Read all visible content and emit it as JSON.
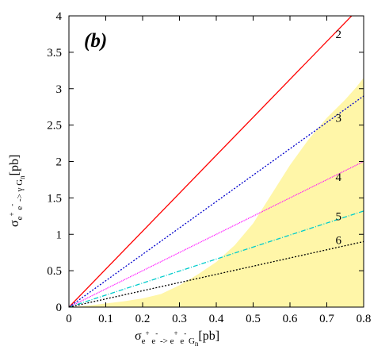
{
  "chart_data": {
    "type": "line",
    "panel_label": "(b)",
    "xlabel": {
      "base": "σ",
      "parts": [
        {
          "t": "e",
          "s": "sub"
        },
        {
          "t": "+",
          "s": "sup"
        },
        {
          "t": " e",
          "s": "sub"
        },
        {
          "t": "-",
          "s": "sup"
        },
        {
          "t": " -> e",
          "s": "sub"
        },
        {
          "t": "+",
          "s": "sup"
        },
        {
          "t": " e",
          "s": "sub"
        },
        {
          "t": "-",
          "s": "sup"
        },
        {
          "t": " G",
          "s": "sub"
        },
        {
          "t": "n",
          "s": "sub2"
        },
        {
          "t": "[pb]",
          "s": "normal"
        }
      ]
    },
    "ylabel": {
      "base": "σ",
      "parts": [
        {
          "t": "e",
          "s": "sub"
        },
        {
          "t": "+",
          "s": "sup"
        },
        {
          "t": " e",
          "s": "sub"
        },
        {
          "t": "-",
          "s": "sup"
        },
        {
          "t": " -> γ G",
          "s": "sub"
        },
        {
          "t": "n",
          "s": "sub2"
        },
        {
          "t": "[pb]",
          "s": "normal"
        }
      ]
    },
    "xlim": [
      0,
      0.8
    ],
    "ylim": [
      0,
      4
    ],
    "xticks": [
      "0",
      "0.1",
      "0.2",
      "0.3",
      "0.4",
      "0.5",
      "0.6",
      "0.7",
      "0.8"
    ],
    "yticks": [
      "0",
      "0.5",
      "1",
      "1.5",
      "2",
      "2.5",
      "3",
      "3.5",
      "4"
    ],
    "grid": false,
    "series": [
      {
        "name": "2",
        "x": [
          0,
          0.8
        ],
        "y": [
          0,
          4.17
        ],
        "color": "#ff0000",
        "dash": "",
        "label_x": 0.73,
        "label_y": 3.75
      },
      {
        "name": "3",
        "x": [
          0,
          0.8
        ],
        "y": [
          0,
          2.9
        ],
        "color": "#0000cc",
        "dash": "2,2",
        "label_x": 0.73,
        "label_y": 2.6
      },
      {
        "name": "4",
        "x": [
          0,
          0.8
        ],
        "y": [
          0,
          2.0
        ],
        "color": "#ff00ff",
        "dash": "1,1",
        "label_x": 0.73,
        "label_y": 1.79
      },
      {
        "name": "5",
        "x": [
          0,
          0.8
        ],
        "y": [
          0,
          1.32
        ],
        "color": "#00cccc",
        "dash": "6,2,1,2",
        "label_x": 0.73,
        "label_y": 1.25
      },
      {
        "name": "6",
        "x": [
          0,
          0.8
        ],
        "y": [
          0,
          0.9
        ],
        "color": "#000000",
        "dash": "2,2",
        "label_x": 0.73,
        "label_y": 0.92
      }
    ],
    "shaded_region": {
      "color": "#fff6a8",
      "upper_boundary": {
        "x": [
          0.0,
          0.02,
          0.05,
          0.1,
          0.15,
          0.2,
          0.25,
          0.3,
          0.35,
          0.4,
          0.45,
          0.5,
          0.55,
          0.6,
          0.65,
          0.7,
          0.75,
          0.78,
          0.8
        ],
        "y": [
          0.0,
          0.01,
          0.02,
          0.05,
          0.08,
          0.12,
          0.18,
          0.3,
          0.45,
          0.62,
          0.85,
          1.15,
          1.55,
          1.95,
          2.3,
          2.6,
          2.85,
          3.02,
          3.15
        ]
      }
    }
  }
}
